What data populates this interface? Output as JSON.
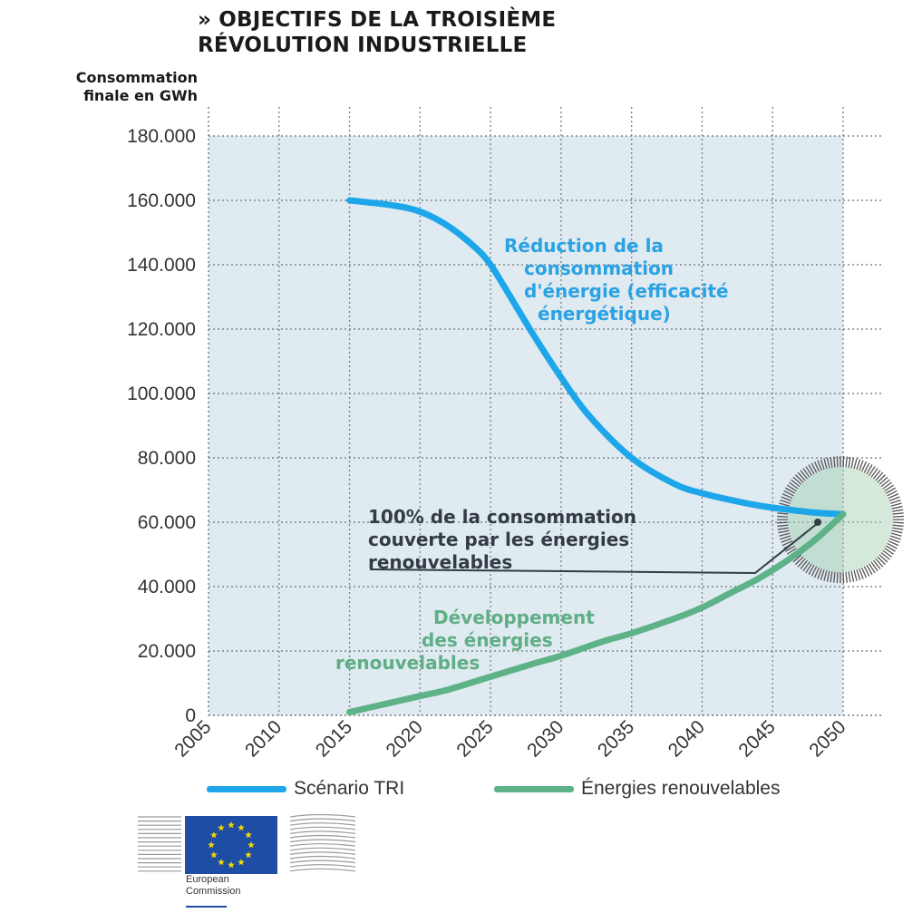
{
  "title": {
    "line1": "» OBJECTIFS DE LA TROISIÈME",
    "line2": "RÉVOLUTION INDUSTRIELLE"
  },
  "colors": {
    "background_plot": "#dfeaf1",
    "blue_series": "#1ea6ea",
    "green_series": "#5eb287",
    "blue_annotation": "#2aa2e3",
    "green_annotation": "#5fae84",
    "dark_annotation": "#333c44",
    "eu_blue": "#1e4ea3",
    "eu_star": "#f6d900"
  },
  "chart_data": {
    "type": "line",
    "title": "» OBJECTIFS DE LA TROISIÈME RÉVOLUTION INDUSTRIELLE",
    "ylabel_line1": "Consommation",
    "ylabel_line2": "finale en GWh",
    "xlabel": "",
    "x_ticks": [
      "2005",
      "2010",
      "2015",
      "2020",
      "2025",
      "2030",
      "2035",
      "2040",
      "2045",
      "2050"
    ],
    "y_ticks": [
      "0",
      "20.000",
      "40.000",
      "60.000",
      "80.000",
      "100.000",
      "120.000",
      "140.000",
      "160.000",
      "180.000"
    ],
    "xlim": [
      2005,
      2050
    ],
    "ylim": [
      0,
      180000
    ],
    "grid": true,
    "legend_position": "bottom",
    "series": [
      {
        "name": "Scénario TRI",
        "color": "#1ea6ea",
        "x": [
          2015,
          2018,
          2020,
          2022,
          2024,
          2025,
          2026,
          2028,
          2030,
          2032,
          2035,
          2038,
          2040,
          2043,
          2045,
          2048,
          2050
        ],
        "y": [
          160000,
          158500,
          156500,
          152000,
          145000,
          140000,
          133000,
          118500,
          105000,
          93000,
          80000,
          72000,
          69000,
          66000,
          64500,
          63000,
          62500
        ]
      },
      {
        "name": "Énergies renouvelables",
        "color": "#5eb287",
        "x": [
          2015,
          2018,
          2020,
          2022,
          2025,
          2028,
          2030,
          2033,
          2035,
          2038,
          2040,
          2042,
          2044,
          2046,
          2048,
          2050
        ],
        "y": [
          1000,
          4000,
          6000,
          8000,
          12000,
          16000,
          18500,
          23000,
          25500,
          30000,
          33500,
          38000,
          42500,
          48000,
          54500,
          62500
        ]
      }
    ],
    "annotations": [
      {
        "lines": [
          "Réduction de la",
          "consommation",
          "d'énergie (efficacité",
          "énergétique)"
        ],
        "color": "#2aa2e3"
      },
      {
        "lines": [
          "100% de la consommation",
          "couverte par les énergies",
          "renouvelables"
        ],
        "color": "#333c44"
      },
      {
        "lines": [
          "Développement",
          "des énergies",
          "renouvelables"
        ],
        "color": "#5fae84"
      }
    ]
  },
  "legend": {
    "items": [
      {
        "label": "Scénario TRI",
        "color": "#1ea6ea"
      },
      {
        "label": "Énergies renouvelables",
        "color": "#5eb287"
      }
    ]
  },
  "logo": {
    "line1": "European",
    "line2": "Commission"
  }
}
